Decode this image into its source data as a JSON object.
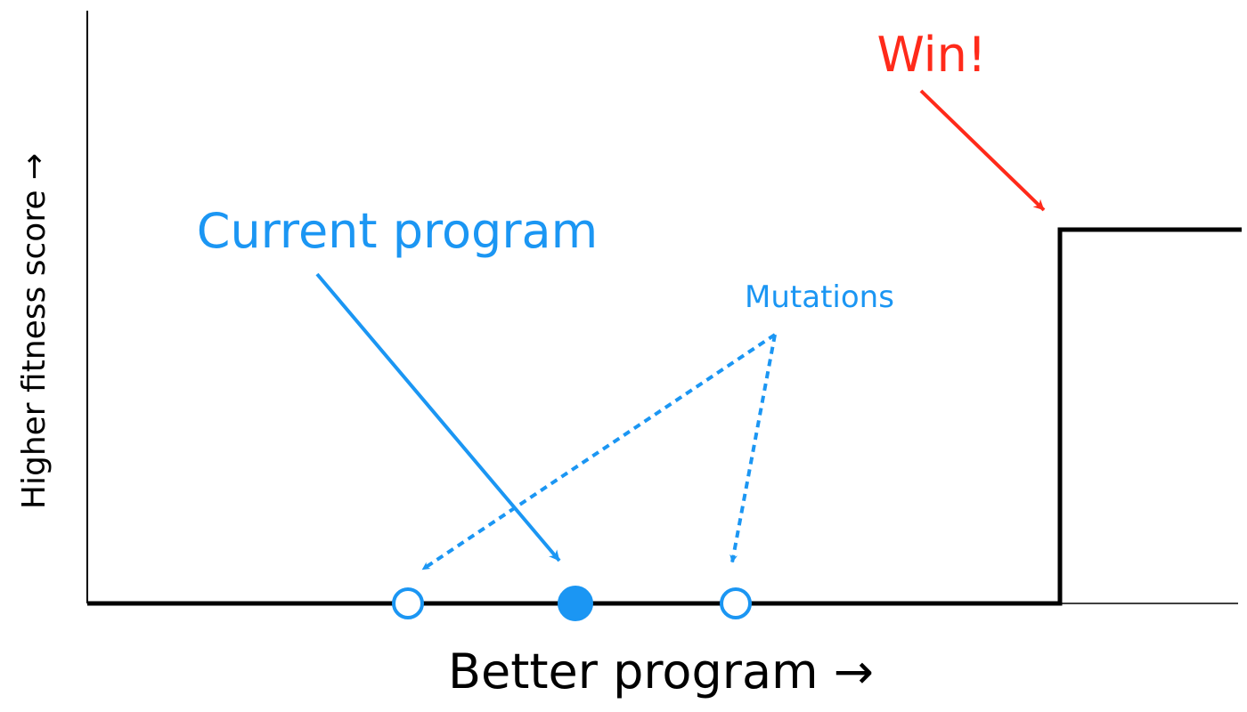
{
  "labels": {
    "ylabel": "Higher fitness score →",
    "xlabel": "Better program →",
    "current": "Current program",
    "mutations": "Mutations",
    "win": "Win!"
  },
  "colors": {
    "axis": "#000000",
    "blue": "#1b96f3",
    "red": "#ff2a1a",
    "background": "#ffffff"
  },
  "markers": [
    {
      "name": "mutation-marker-left",
      "kind": "mutation",
      "filled": false
    },
    {
      "name": "current-program-marker",
      "kind": "current",
      "filled": true
    },
    {
      "name": "mutation-marker-right",
      "kind": "mutation",
      "filled": false
    }
  ]
}
